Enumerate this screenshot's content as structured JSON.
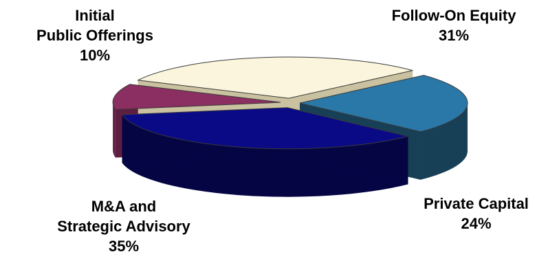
{
  "chart_data": {
    "type": "pie",
    "style": "3d-exploded",
    "title": "",
    "slices": [
      {
        "label_lines": [
          "Initial",
          "Public Offerings"
        ],
        "pct_label": "10%",
        "value": 10,
        "top_color": "#8B2E62",
        "side_color": "#5E1E42"
      },
      {
        "label_lines": [
          "Follow-On Equity"
        ],
        "pct_label": "31%",
        "value": 31,
        "top_color": "#FAF5DC",
        "side_color": "#C9C1A0"
      },
      {
        "label_lines": [
          "Private Capital"
        ],
        "pct_label": "24%",
        "value": 24,
        "top_color": "#2A78A8",
        "side_color": "#173F56"
      },
      {
        "label_lines": [
          "M&A and",
          "Strategic Advisory"
        ],
        "pct_label": "35%",
        "value": 35,
        "top_color": "#0A0A86",
        "side_color": "#050544"
      }
    ]
  }
}
